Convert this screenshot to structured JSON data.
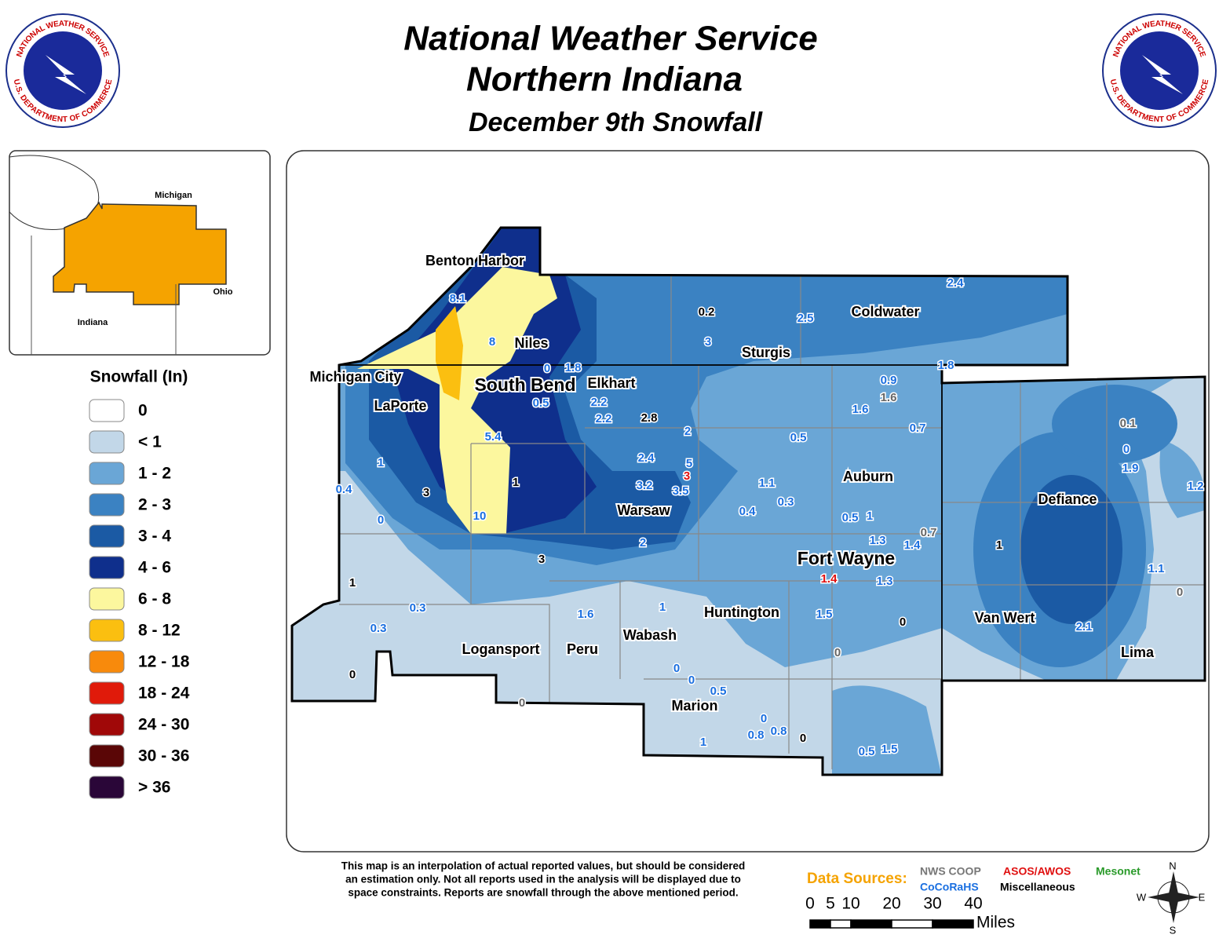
{
  "header": {
    "title_lines": [
      "National Weather Service",
      "Northern Indiana"
    ],
    "subtitle": "December 9th Snowfall"
  },
  "logo": {
    "top_text": "NATIONAL WEATHER SERVICE",
    "bottom_text": "U.S. DEPARTMENT OF COMMERCE"
  },
  "inset": {
    "labels": [
      "Michigan",
      "Ohio",
      "Indiana"
    ]
  },
  "legend": {
    "title": "Snowfall (In)",
    "items": [
      "0",
      "< 1",
      "1 - 2",
      "2 - 3",
      "3 - 4",
      "4 - 6",
      "6 - 8",
      "8 - 12",
      "12 - 18",
      "18 - 24",
      "24 - 30",
      "30 - 36",
      "> 36"
    ]
  },
  "cities": [
    "Benton Harbor",
    "Niles",
    "Michigan City",
    "South Bend",
    "Elkhart",
    "LaPorte",
    "Coldwater",
    "Sturgis",
    "Auburn",
    "Defiance",
    "Warsaw",
    "Fort Wayne",
    "Huntington",
    "Van Wert",
    "Wabash",
    "Logansport",
    "Peru",
    "Lima",
    "Marion"
  ],
  "reports": [
    8.1,
    8,
    0,
    1.8,
    0.5,
    2.2,
    2.2,
    2.8,
    2,
    5.4,
    2.4,
    5,
    3,
    3.2,
    3.5,
    1,
    3,
    10,
    1,
    0.4,
    0,
    2,
    3,
    1,
    0.3,
    0.3,
    0,
    0,
    1.6,
    1,
    0,
    0,
    0.5,
    0,
    0.8,
    0.8,
    0,
    1,
    0.5,
    1.5,
    0,
    1.5,
    0,
    1.4,
    1.3,
    1.3,
    1.4,
    0.7,
    0.5,
    1,
    1.1,
    0.3,
    0.4,
    0.5,
    1.6,
    0.9,
    1.6,
    0.7,
    1.8,
    2.4,
    2.5,
    0.2,
    3,
    0.1,
    0,
    1.9,
    1.2,
    1.1,
    0,
    2.1,
    1
  ],
  "footer": {
    "disclaimer": [
      "This map is an interpolation of actual reported values, but should be considered",
      "an estimation only. Not all reports used in the analysis will be displayed due to",
      "space constraints. Reports are snowfall through the above mentioned period."
    ],
    "data_sources": {
      "title": "Data Sources:",
      "sources": [
        "NWS COOP",
        "ASOS/AWOS",
        "Mesonet",
        "CoCoRaHS",
        "Miscellaneous"
      ]
    },
    "scale": {
      "ticks": [
        0,
        5,
        10,
        20,
        30,
        40
      ],
      "unit": "Miles"
    },
    "compass": [
      "N",
      "E",
      "S",
      "W"
    ]
  }
}
